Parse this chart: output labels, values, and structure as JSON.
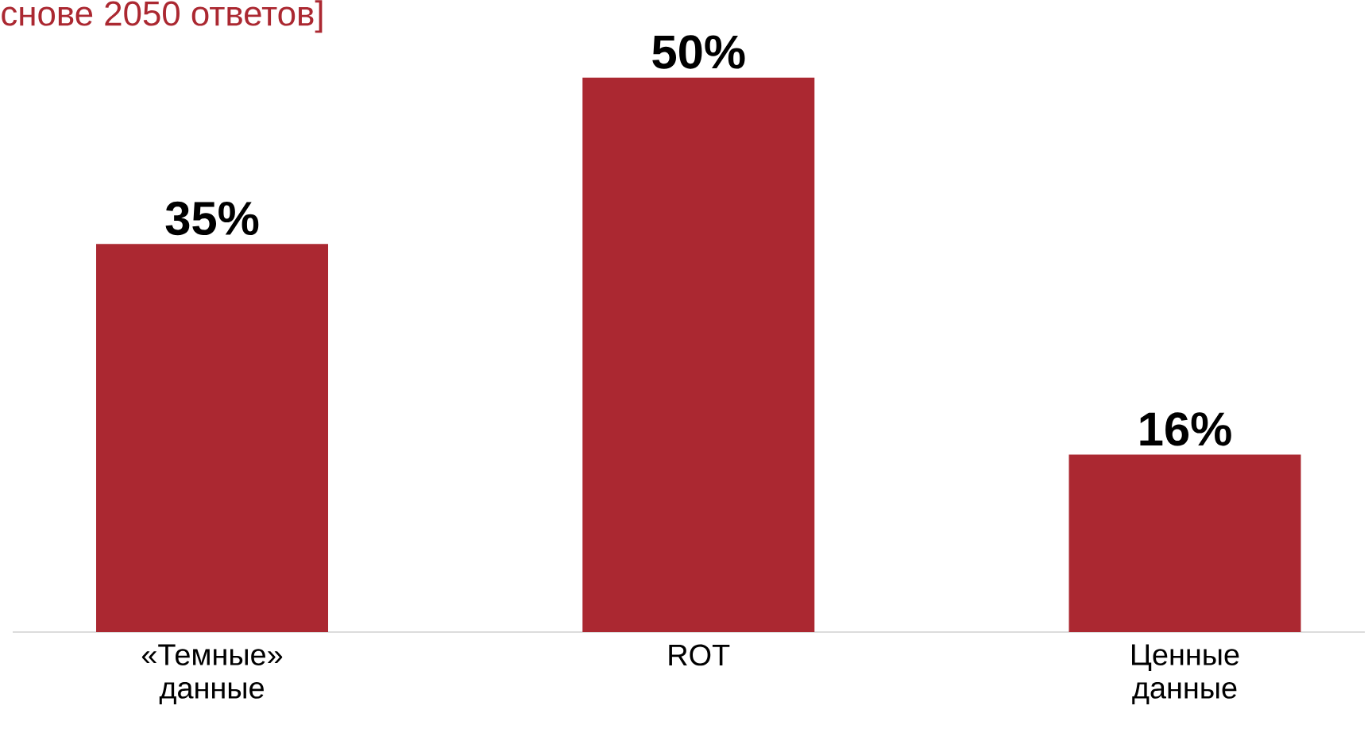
{
  "chart_data": {
    "type": "bar",
    "subtitle": "снове 2050 ответов]",
    "categories": [
      "«Темные» данные",
      "ROT",
      "Ценные данные"
    ],
    "values": [
      35,
      50,
      16
    ],
    "value_labels": [
      "35%",
      "50%",
      "16%"
    ],
    "color": "#ab2831"
  }
}
